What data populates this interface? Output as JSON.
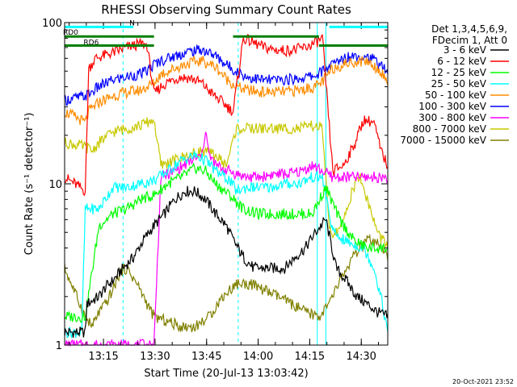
{
  "chart_data": {
    "type": "line",
    "title": "RHESSI Observing Summary Count Rates",
    "xlabel": "Start Time (20-Jul-13 13:03:42)",
    "ylabel": "Count Rate (s⁻¹ detector⁻¹)",
    "yscale": "log",
    "ylim": [
      1,
      100
    ],
    "xlim_minutes": [
      0,
      94
    ],
    "x_ticks": [
      {
        "label": "13:15",
        "min": 11.3
      },
      {
        "label": "13:30",
        "min": 26.3
      },
      {
        "label": "13:45",
        "min": 41.3
      },
      {
        "label": "14:00",
        "min": 56.3
      },
      {
        "label": "14:15",
        "min": 71.3
      },
      {
        "label": "14:30",
        "min": 86.3
      }
    ],
    "y_ticks": [
      {
        "label": "1",
        "v": 1
      },
      {
        "label": "10",
        "v": 10
      },
      {
        "label": "100",
        "v": 100
      }
    ],
    "legend": {
      "placement": "top-right",
      "header": [
        "Det 1,3,4,5,6,9,",
        "FDecim 1, Att 0"
      ]
    },
    "flags": [
      {
        "label": "N",
        "color": "#00ffff",
        "y": 94,
        "segments": [
          [
            0,
            20
          ],
          [
            77,
            94
          ]
        ]
      },
      {
        "label": "RD0",
        "color": "#008000",
        "y": 82,
        "segments": [
          [
            0,
            26
          ],
          [
            49,
            74
          ]
        ]
      },
      {
        "label": "RD6",
        "color": "#008000",
        "y": 72,
        "segments": [
          [
            0,
            26
          ],
          [
            74,
            94
          ]
        ]
      }
    ],
    "vlines_solid_cyan": [
      0,
      73.5,
      76
    ],
    "vlines_dashed_cyan": [
      17,
      50.5,
      94
    ],
    "series": [
      {
        "name": "3 - 6 keV",
        "color": "#000000",
        "x": [
          0,
          6,
          6.5,
          10,
          12,
          14,
          17,
          20,
          23,
          26,
          29,
          32,
          35,
          38,
          41,
          44,
          47,
          49,
          52,
          55,
          58,
          61,
          64,
          67,
          70,
          73,
          76,
          79,
          82,
          85,
          88,
          91,
          94
        ],
        "y": [
          1.2,
          1.2,
          1.8,
          2.0,
          2.3,
          2.5,
          3.0,
          3.5,
          4.5,
          5.5,
          6.5,
          8.0,
          9.0,
          9.0,
          8.0,
          6.5,
          5.5,
          4.5,
          3.5,
          3.0,
          3.0,
          3.0,
          3.0,
          3.5,
          4.0,
          5.0,
          6.0,
          3.0,
          2.5,
          2.0,
          1.8,
          1.6,
          1.5
        ]
      },
      {
        "name": "6 - 12 keV",
        "color": "#ff0000",
        "x": [
          0,
          3,
          6,
          7,
          9,
          12,
          15,
          18,
          20,
          22,
          24,
          26,
          28,
          31,
          34,
          37,
          40,
          43,
          46,
          49,
          52,
          55,
          58,
          61,
          64,
          67,
          70,
          73,
          75,
          78,
          81,
          84,
          87,
          90,
          92,
          94
        ],
        "y": [
          11,
          10,
          9,
          52,
          60,
          63,
          66,
          70,
          72,
          74,
          72,
          36,
          40,
          44,
          46,
          45,
          42,
          36,
          32,
          28,
          80,
          75,
          70,
          68,
          67,
          68,
          70,
          75,
          80,
          12,
          13,
          17,
          25,
          24,
          16,
          13
        ]
      },
      {
        "name": "12 - 25 keV",
        "color": "#00ff00",
        "x": [
          0,
          6,
          10,
          14,
          18,
          22,
          26,
          30,
          34,
          38,
          41,
          44,
          48,
          52,
          56,
          60,
          64,
          68,
          72,
          76,
          80,
          84,
          88,
          94
        ],
        "y": [
          1.5,
          1.5,
          5.5,
          6.5,
          7.0,
          8.0,
          8.5,
          10.0,
          11.0,
          12.5,
          12.0,
          10.0,
          8.5,
          7.0,
          6.5,
          6.5,
          6.5,
          6.5,
          6.5,
          9.5,
          6.0,
          4.5,
          4.0,
          4.0
        ]
      },
      {
        "name": "25 - 50 keV",
        "color": "#00ffff",
        "x": [
          0,
          5,
          6,
          10,
          14,
          18,
          22,
          26,
          30,
          34,
          38,
          41,
          44,
          48,
          50,
          53,
          56,
          60,
          64,
          68,
          72,
          75,
          78,
          81,
          84,
          87,
          90,
          92,
          94
        ],
        "y": [
          1.2,
          1.2,
          7.0,
          7.0,
          9.5,
          9.5,
          10,
          10.5,
          12,
          14,
          15,
          14,
          12,
          10.5,
          9,
          9.5,
          9.5,
          9.5,
          10,
          10,
          11,
          11,
          5,
          4.5,
          4.2,
          4,
          3,
          2,
          1.2
        ]
      },
      {
        "name": "50 - 100 keV",
        "color": "#ff8c00",
        "x": [
          0,
          3,
          6,
          7,
          10,
          14,
          18,
          22,
          24,
          26,
          28,
          32,
          36,
          40,
          44,
          47,
          50,
          53,
          58,
          63,
          68,
          73,
          75,
          78,
          81,
          84,
          88,
          92,
          94
        ],
        "y": [
          28,
          26,
          24,
          28,
          32,
          35,
          37,
          38,
          40,
          42,
          48,
          52,
          56,
          58,
          53,
          45,
          40,
          38,
          37,
          37,
          38,
          40,
          43,
          52,
          55,
          57,
          58,
          50,
          42
        ]
      },
      {
        "name": "100 - 300 keV",
        "color": "#0000ff",
        "x": [
          0,
          3,
          6,
          7,
          10,
          14,
          18,
          22,
          24,
          26,
          28,
          32,
          36,
          40,
          44,
          47,
          50,
          53,
          58,
          63,
          68,
          73,
          75,
          78,
          81,
          84,
          88,
          92,
          94
        ],
        "y": [
          33,
          34,
          35,
          36,
          40,
          44,
          46,
          48,
          50,
          55,
          58,
          62,
          66,
          68,
          62,
          55,
          50,
          46,
          44,
          44,
          45,
          47,
          50,
          55,
          60,
          63,
          62,
          55,
          48
        ]
      },
      {
        "name": "300 - 800 keV",
        "color": "#ff00ff",
        "x": [
          0,
          26,
          28,
          32,
          36,
          40,
          41,
          42,
          44,
          48,
          50,
          53,
          57,
          61,
          65,
          69,
          72,
          75,
          78,
          94
        ],
        "y": [
          1.0,
          1.0,
          11,
          12,
          13.5,
          15,
          22,
          15,
          13,
          12,
          11.5,
          11,
          11,
          11.5,
          11.5,
          12,
          13,
          12,
          11,
          11
        ]
      },
      {
        "name": "800 - 7000 keV",
        "color": "#c8c800",
        "x": [
          0,
          6,
          8,
          10,
          14,
          18,
          22,
          24,
          26,
          28,
          32,
          36,
          40,
          44,
          47,
          50,
          53,
          58,
          63,
          68,
          73,
          75,
          77,
          80,
          82,
          84,
          86,
          88,
          91,
          94
        ],
        "y": [
          18,
          17,
          16,
          18,
          21,
          22,
          23,
          24,
          25,
          13,
          14,
          15,
          16,
          15,
          13,
          22,
          22,
          22,
          22,
          22,
          23,
          22,
          5,
          5,
          7,
          9.5,
          11,
          8,
          5,
          4
        ]
      },
      {
        "name": "7000 - 15000 keV",
        "color": "#808000",
        "x": [
          0,
          6,
          8,
          10,
          12,
          14,
          16,
          18,
          20,
          22,
          24,
          26,
          30,
          34,
          38,
          42,
          46,
          50,
          54,
          58,
          62,
          66,
          70,
          74,
          77,
          80,
          84,
          88,
          91,
          94
        ],
        "y": [
          3.0,
          1.5,
          1.3,
          1.6,
          1.8,
          2.2,
          2.8,
          3.0,
          2.6,
          2.2,
          1.8,
          1.5,
          1.4,
          1.3,
          1.3,
          1.5,
          2.0,
          2.4,
          2.4,
          2.2,
          2.0,
          1.8,
          1.6,
          1.5,
          1.8,
          2.5,
          3.5,
          4.5,
          4.2,
          3.5
        ]
      }
    ]
  },
  "footer": {
    "timestamp": "20-Oct-2021 23:52"
  }
}
